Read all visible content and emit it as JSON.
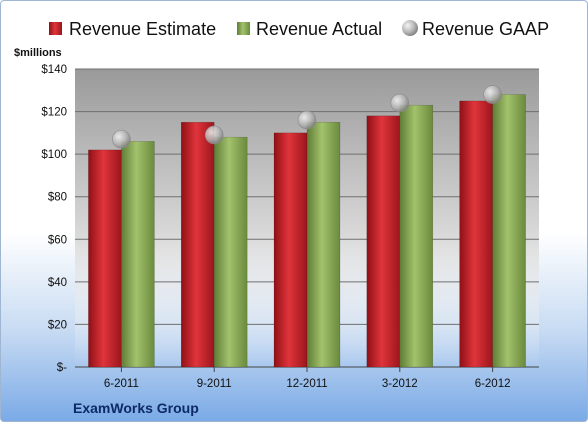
{
  "chart_data": {
    "type": "bar",
    "ylabel": "$millions",
    "footer": "ExamWorks Group",
    "categories": [
      "6-2011",
      "9-2011",
      "12-2011",
      "3-2012",
      "6-2012"
    ],
    "ylim": [
      0,
      140
    ],
    "yticks": [
      0,
      20,
      40,
      60,
      80,
      100,
      120,
      140
    ],
    "ytick_labels": [
      "$-",
      "$20",
      "$40",
      "$60",
      "$80",
      "$100",
      "$120",
      "$140"
    ],
    "legend_position": "top",
    "grid": true,
    "series": [
      {
        "name": "Revenue Estimate",
        "kind": "bar",
        "color": "#c1272d",
        "values": [
          102,
          115,
          110,
          118,
          125
        ]
      },
      {
        "name": "Revenue Actual",
        "kind": "bar",
        "color": "#8cab5a",
        "values": [
          106,
          108,
          115,
          123,
          128
        ]
      },
      {
        "name": "Revenue GAAP",
        "kind": "marker",
        "color": "#b8b8b8",
        "values": [
          107,
          109,
          116,
          124,
          128
        ]
      }
    ]
  }
}
